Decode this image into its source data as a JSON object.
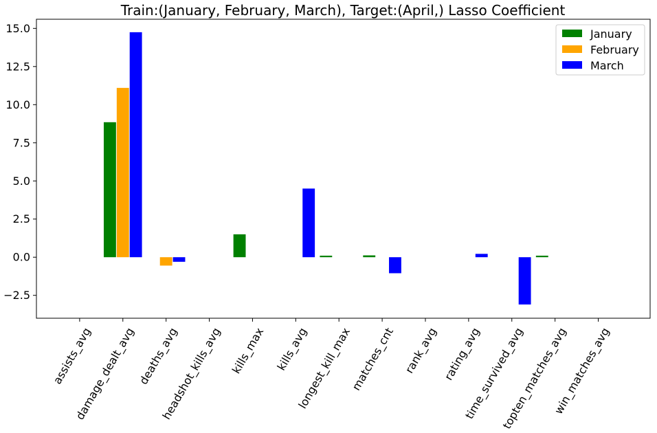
{
  "chart_data": {
    "type": "bar",
    "title": "Train:(January, February, March), Target:(April,) Lasso Coefficient",
    "xlabel": "",
    "ylabel": "",
    "ylim": [
      -4.0,
      15.6
    ],
    "yticks": [
      -2.5,
      0.0,
      2.5,
      5.0,
      7.5,
      10.0,
      12.5,
      15.0
    ],
    "ytick_labels": [
      "−2.5",
      "0.0",
      "2.5",
      "5.0",
      "7.5",
      "10.0",
      "12.5",
      "15.0"
    ],
    "categories": [
      "assists_avg",
      "damage_dealt_avg",
      "deaths_avg",
      "headshot_kills_avg",
      "kills_max",
      "kills_avg",
      "longest_kill_max",
      "matches_cnt",
      "rank_avg",
      "rating_avg",
      "time_survived_avg",
      "topten_matches_avg",
      "win_matches_avg"
    ],
    "series": [
      {
        "name": "January",
        "color": "#008000",
        "values": [
          0,
          8.85,
          0,
          0,
          1.5,
          0,
          0.1,
          0.12,
          0,
          0,
          0,
          0.1,
          0
        ]
      },
      {
        "name": "February",
        "color": "#FFA500",
        "values": [
          0,
          11.1,
          -0.55,
          0,
          0,
          0,
          0,
          0,
          0,
          0,
          0,
          0,
          0
        ]
      },
      {
        "name": "March",
        "color": "#0000FF",
        "values": [
          0,
          14.75,
          -0.3,
          0,
          0,
          4.5,
          0,
          -1.05,
          0,
          0.22,
          -3.1,
          0,
          0
        ]
      }
    ],
    "grid": false,
    "legend_position": "top-right"
  }
}
